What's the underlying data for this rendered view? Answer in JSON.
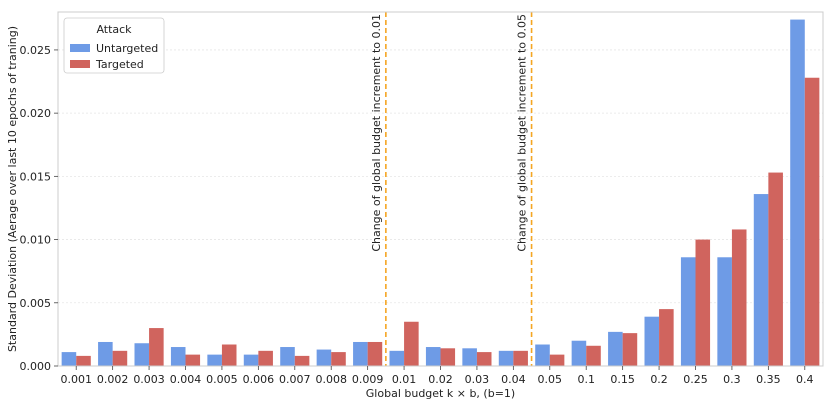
{
  "chart_data": {
    "type": "bar",
    "title": "",
    "xlabel": "Global budget k × b, (b=1)",
    "ylabel": "Standard Deviation (Aerage over last 10 epochs of traning)",
    "ylim": [
      0,
      0.028
    ],
    "yticks": [
      "0.000",
      "0.005",
      "0.010",
      "0.015",
      "0.020",
      "0.025"
    ],
    "grid": "horizontal",
    "legend": {
      "title": "Attack",
      "placement": "top-left"
    },
    "categories": [
      "0.001",
      "0.002",
      "0.003",
      "0.004",
      "0.005",
      "0.006",
      "0.007",
      "0.008",
      "0.009",
      "0.01",
      "0.02",
      "0.03",
      "0.04",
      "0.05",
      "0.1",
      "0.15",
      "0.2",
      "0.25",
      "0.3",
      "0.35",
      "0.4"
    ],
    "series": [
      {
        "name": "Untargeted",
        "color": "#6e9be6",
        "values": [
          0.0011,
          0.0019,
          0.0018,
          0.0015,
          0.0009,
          0.0009,
          0.0015,
          0.0013,
          0.0019,
          0.0012,
          0.0015,
          0.0014,
          0.0012,
          0.0017,
          0.002,
          0.0027,
          0.0039,
          0.0086,
          0.0086,
          0.0136,
          0.0274
        ]
      },
      {
        "name": "Targeted",
        "color": "#d0645e",
        "values": [
          0.0008,
          0.0012,
          0.003,
          0.0009,
          0.0017,
          0.0012,
          0.0008,
          0.0011,
          0.0019,
          0.0035,
          0.0014,
          0.0011,
          0.0012,
          0.0009,
          0.0016,
          0.0026,
          0.0045,
          0.01,
          0.0108,
          0.0153,
          0.0228
        ]
      }
    ],
    "annotations": [
      {
        "text": "Change of global budget increment to 0.01",
        "after_category": "0.009",
        "color": "#f5a623"
      },
      {
        "text": "Change of global budget increment to 0.05",
        "after_category": "0.04",
        "color": "#f5a623"
      }
    ]
  }
}
